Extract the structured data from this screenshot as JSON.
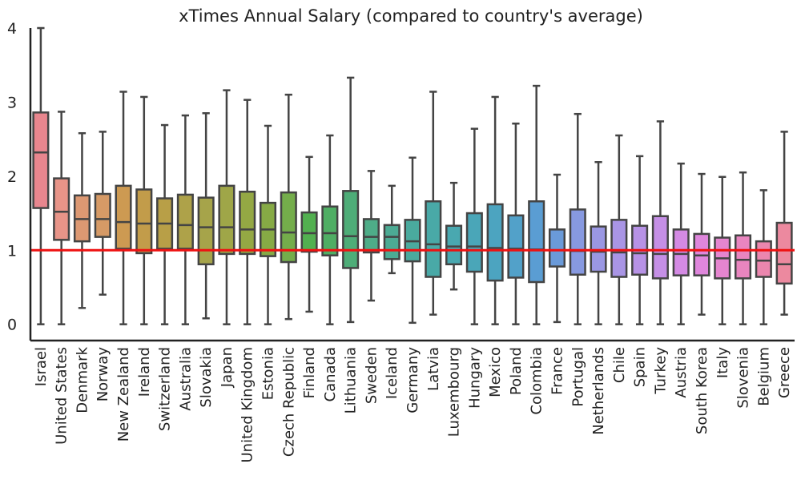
{
  "chart_data": {
    "type": "box",
    "title": "xTimes Annual Salary (compared to country's average)",
    "xlabel": "",
    "ylabel": "",
    "ylim": [
      -0.22,
      4.0
    ],
    "yticks": [
      0,
      1,
      2,
      3,
      4
    ],
    "reference_line": {
      "y": 1,
      "color": "#ee1111"
    },
    "grid": false,
    "series": [
      {
        "name": "Israel",
        "min": 0.0,
        "q1": 1.57,
        "median": 2.32,
        "q3": 2.86,
        "max": 4.0,
        "color": "#e8868e"
      },
      {
        "name": "United States",
        "min": 0.0,
        "q1": 1.14,
        "median": 1.52,
        "q3": 1.97,
        "max": 2.87,
        "color": "#e89488"
      },
      {
        "name": "Denmark",
        "min": 0.22,
        "q1": 1.12,
        "median": 1.42,
        "q3": 1.74,
        "max": 2.58,
        "color": "#dc9872"
      },
      {
        "name": "Norway",
        "min": 0.4,
        "q1": 1.18,
        "median": 1.42,
        "q3": 1.76,
        "max": 2.6,
        "color": "#d69a66"
      },
      {
        "name": "New Zealand",
        "min": 0.0,
        "q1": 1.02,
        "median": 1.38,
        "q3": 1.87,
        "max": 3.14,
        "color": "#cd9a52"
      },
      {
        "name": "Ireland",
        "min": 0.0,
        "q1": 0.96,
        "median": 1.36,
        "q3": 1.82,
        "max": 3.07,
        "color": "#c29c4a"
      },
      {
        "name": "Switzerland",
        "min": 0.0,
        "q1": 1.02,
        "median": 1.36,
        "q3": 1.7,
        "max": 2.69,
        "color": "#b89f47"
      },
      {
        "name": "Australia",
        "min": 0.0,
        "q1": 1.02,
        "median": 1.34,
        "q3": 1.75,
        "max": 2.82,
        "color": "#aea249"
      },
      {
        "name": "Slovakia",
        "min": 0.08,
        "q1": 0.81,
        "median": 1.31,
        "q3": 1.71,
        "max": 2.85,
        "color": "#a6a44a"
      },
      {
        "name": "Japan",
        "min": 0.0,
        "q1": 0.95,
        "median": 1.31,
        "q3": 1.87,
        "max": 3.16,
        "color": "#9fa648"
      },
      {
        "name": "United Kingdom",
        "min": 0.0,
        "q1": 0.95,
        "median": 1.28,
        "q3": 1.79,
        "max": 3.03,
        "color": "#94a844"
      },
      {
        "name": "Estonia",
        "min": 0.0,
        "q1": 0.92,
        "median": 1.28,
        "q3": 1.64,
        "max": 2.68,
        "color": "#86aa45"
      },
      {
        "name": "Czech Republic",
        "min": 0.07,
        "q1": 0.84,
        "median": 1.24,
        "q3": 1.78,
        "max": 3.1,
        "color": "#74ad4b"
      },
      {
        "name": "Finland",
        "min": 0.17,
        "q1": 0.98,
        "median": 1.23,
        "q3": 1.51,
        "max": 2.26,
        "color": "#52b050"
      },
      {
        "name": "Canada",
        "min": 0.0,
        "q1": 0.93,
        "median": 1.23,
        "q3": 1.59,
        "max": 2.55,
        "color": "#4fae64"
      },
      {
        "name": "Lithuania",
        "min": 0.03,
        "q1": 0.76,
        "median": 1.19,
        "q3": 1.8,
        "max": 3.33,
        "color": "#4ead78"
      },
      {
        "name": "Sweden",
        "min": 0.32,
        "q1": 0.97,
        "median": 1.18,
        "q3": 1.42,
        "max": 2.07,
        "color": "#4ead88"
      },
      {
        "name": "Iceland",
        "min": 0.69,
        "q1": 0.88,
        "median": 1.18,
        "q3": 1.34,
        "max": 1.87,
        "color": "#4cab94"
      },
      {
        "name": "Germany",
        "min": 0.02,
        "q1": 0.85,
        "median": 1.12,
        "q3": 1.41,
        "max": 2.25,
        "color": "#4aaa9e"
      },
      {
        "name": "Latvia",
        "min": 0.13,
        "q1": 0.64,
        "median": 1.08,
        "q3": 1.66,
        "max": 3.14,
        "color": "#49a9a7"
      },
      {
        "name": "Luxembourg",
        "min": 0.47,
        "q1": 0.81,
        "median": 1.05,
        "q3": 1.33,
        "max": 1.91,
        "color": "#49a8b0"
      },
      {
        "name": "Hungary",
        "min": 0.0,
        "q1": 0.71,
        "median": 1.05,
        "q3": 1.5,
        "max": 2.64,
        "color": "#4aa6b8"
      },
      {
        "name": "Mexico",
        "min": 0.0,
        "q1": 0.59,
        "median": 1.03,
        "q3": 1.62,
        "max": 3.07,
        "color": "#4ca4c0"
      },
      {
        "name": "Poland",
        "min": 0.0,
        "q1": 0.63,
        "median": 1.02,
        "q3": 1.47,
        "max": 2.71,
        "color": "#52a1c9"
      },
      {
        "name": "Colombia",
        "min": 0.0,
        "q1": 0.57,
        "median": 1.01,
        "q3": 1.66,
        "max": 3.22,
        "color": "#5a9dd3"
      },
      {
        "name": "France",
        "min": 0.03,
        "q1": 0.78,
        "median": 1.0,
        "q3": 1.28,
        "max": 2.02,
        "color": "#6a9ad9"
      },
      {
        "name": "Portugal",
        "min": 0.0,
        "q1": 0.67,
        "median": 0.99,
        "q3": 1.55,
        "max": 2.84,
        "color": "#8799e0"
      },
      {
        "name": "Netherlands",
        "min": 0.0,
        "q1": 0.71,
        "median": 0.98,
        "q3": 1.32,
        "max": 2.19,
        "color": "#9a97e3"
      },
      {
        "name": "Chile",
        "min": 0.0,
        "q1": 0.64,
        "median": 0.97,
        "q3": 1.41,
        "max": 2.55,
        "color": "#a995e5"
      },
      {
        "name": "Spain",
        "min": 0.0,
        "q1": 0.67,
        "median": 0.96,
        "q3": 1.33,
        "max": 2.27,
        "color": "#b792e6"
      },
      {
        "name": "Turkey",
        "min": 0.0,
        "q1": 0.62,
        "median": 0.95,
        "q3": 1.46,
        "max": 2.74,
        "color": "#c58fe6"
      },
      {
        "name": "Austria",
        "min": 0.0,
        "q1": 0.66,
        "median": 0.95,
        "q3": 1.28,
        "max": 2.17,
        "color": "#d48ae4"
      },
      {
        "name": "South Korea",
        "min": 0.13,
        "q1": 0.66,
        "median": 0.93,
        "q3": 1.22,
        "max": 2.03,
        "color": "#df86dc"
      },
      {
        "name": "Italy",
        "min": 0.0,
        "q1": 0.62,
        "median": 0.89,
        "q3": 1.17,
        "max": 1.99,
        "color": "#e585cf"
      },
      {
        "name": "Slovenia",
        "min": 0.0,
        "q1": 0.62,
        "median": 0.87,
        "q3": 1.2,
        "max": 2.05,
        "color": "#e985bf"
      },
      {
        "name": "Belgium",
        "min": 0.0,
        "q1": 0.64,
        "median": 0.86,
        "q3": 1.12,
        "max": 1.81,
        "color": "#eb86ae"
      },
      {
        "name": "Greece",
        "min": 0.13,
        "q1": 0.55,
        "median": 0.81,
        "q3": 1.37,
        "max": 2.6,
        "color": "#ec899f"
      }
    ]
  }
}
